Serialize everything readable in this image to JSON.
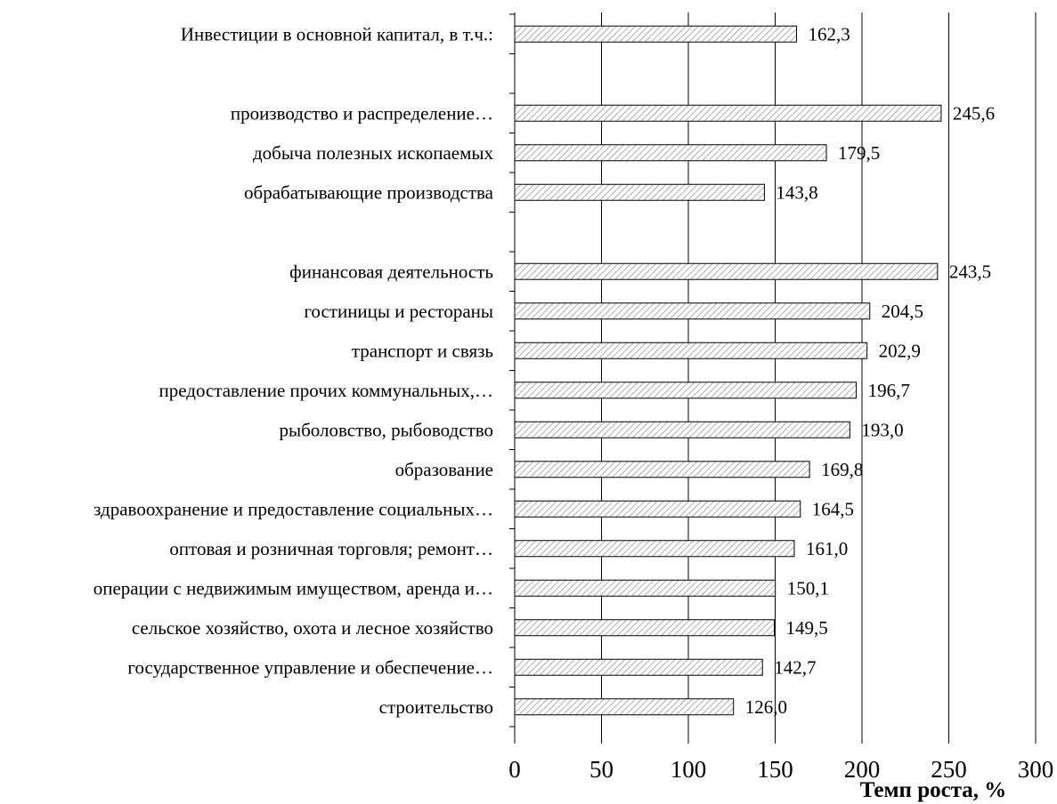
{
  "chart_data": {
    "type": "bar",
    "orientation": "horizontal",
    "xlabel": "Темп роста, %",
    "xlim": [
      0,
      300
    ],
    "xticks": [
      0,
      50,
      100,
      150,
      200,
      250,
      300
    ],
    "grid": "vertical",
    "bar_fill": "diagonal-hatch",
    "rows": [
      {
        "label": "Инвестиции в основной капитал, в т.ч.:",
        "value": 162.3,
        "value_label": "162,3"
      },
      {
        "label": "",
        "value": null,
        "value_label": ""
      },
      {
        "label": "производство и распределение…",
        "value": 245.6,
        "value_label": "245,6"
      },
      {
        "label": "добыча полезных ископаемых",
        "value": 179.5,
        "value_label": "179,5"
      },
      {
        "label": "обрабатывающие производства",
        "value": 143.8,
        "value_label": "143,8"
      },
      {
        "label": "",
        "value": null,
        "value_label": ""
      },
      {
        "label": "финансовая деятельность",
        "value": 243.5,
        "value_label": "243,5"
      },
      {
        "label": "гостиницы и рестораны",
        "value": 204.5,
        "value_label": "204,5"
      },
      {
        "label": "транспорт и связь",
        "value": 202.9,
        "value_label": "202,9"
      },
      {
        "label": "предоставление прочих коммунальных,…",
        "value": 196.7,
        "value_label": "196,7"
      },
      {
        "label": "рыболовство, рыбоводство",
        "value": 193.0,
        "value_label": "193,0"
      },
      {
        "label": "образование",
        "value": 169.8,
        "value_label": "169,8"
      },
      {
        "label": "здравоохранение и предоставление социальных…",
        "value": 164.5,
        "value_label": "164,5"
      },
      {
        "label": "оптовая и розничная торговля; ремонт…",
        "value": 161.0,
        "value_label": "161,0"
      },
      {
        "label": "операции с недвижимым имуществом, аренда и…",
        "value": 150.1,
        "value_label": "150,1"
      },
      {
        "label": "сельское хозяйство, охота и лесное хозяйство",
        "value": 149.5,
        "value_label": "149,5"
      },
      {
        "label": "государственное управление и обеспечение…",
        "value": 142.7,
        "value_label": "142,7"
      },
      {
        "label": "строительство",
        "value": 126.0,
        "value_label": "126,0"
      }
    ]
  }
}
